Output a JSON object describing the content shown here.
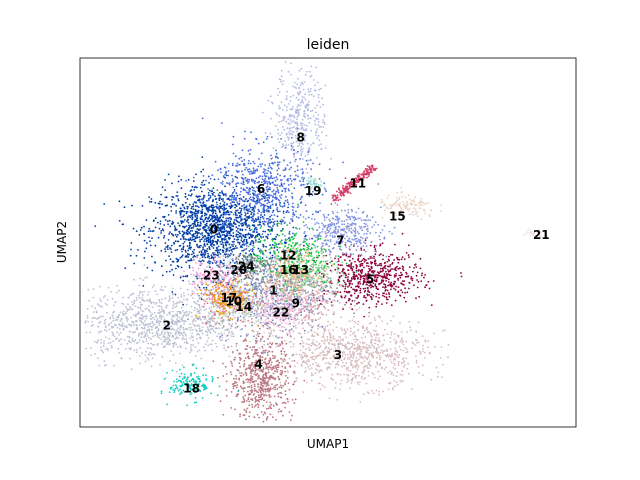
{
  "chart_data": {
    "type": "scatter",
    "title": "leiden",
    "xlabel": "UMAP1",
    "ylabel": "UMAP2",
    "xlim": [
      0,
      100
    ],
    "ylim": [
      0,
      100
    ],
    "grid": false,
    "legend": "on data",
    "ticks_shown": false,
    "clusters": [
      {
        "label": "0",
        "x": 27.5,
        "y": 53.5,
        "sx": 6.5,
        "sy": 6.0,
        "n": 1500,
        "color": "#023fa5"
      },
      {
        "label": "1",
        "x": 38.5,
        "y": 36.5,
        "sx": 6.0,
        "sy": 5.5,
        "n": 800,
        "color": "#7d87b9"
      },
      {
        "label": "2",
        "x": 16.5,
        "y": 28.0,
        "sx": 8.5,
        "sy": 4.8,
        "n": 1000,
        "color": "#bec1d4"
      },
      {
        "label": "3",
        "x": 55.0,
        "y": 20.0,
        "sx": 7.5,
        "sy": 4.5,
        "n": 800,
        "color": "#d6bcc0"
      },
      {
        "label": "4",
        "x": 36.5,
        "y": 13.0,
        "sx": 3.2,
        "sy": 5.5,
        "n": 600,
        "color": "#bb7784"
      },
      {
        "label": "5",
        "x": 59.0,
        "y": 40.5,
        "sx": 5.0,
        "sy": 3.6,
        "n": 600,
        "color": "#8e063b"
      },
      {
        "label": "6",
        "x": 36.5,
        "y": 64.5,
        "sx": 5.0,
        "sy": 6.0,
        "n": 600,
        "color": "#4a6fe3"
      },
      {
        "label": "7",
        "x": 52.5,
        "y": 53.0,
        "sx": 4.0,
        "sy": 3.0,
        "n": 350,
        "color": "#8595e1"
      },
      {
        "label": "8",
        "x": 44.5,
        "y": 84.0,
        "sx": 2.6,
        "sy": 6.5,
        "n": 350,
        "color": "#b5bbe3"
      },
      {
        "label": "9",
        "x": 44.0,
        "y": 34.0,
        "sx": 4.0,
        "sy": 4.0,
        "n": 300,
        "color": "#e6afb9"
      },
      {
        "label": "10",
        "x": 30.5,
        "y": 34.5,
        "sx": 3.0,
        "sy": 3.0,
        "n": 200,
        "color": "#e07b91"
      },
      {
        "label": "11",
        "x": 55.0,
        "y": 66.0,
        "sx": 4.0,
        "sy": 1.2,
        "n": 200,
        "color": "#d33f6a",
        "streak": true
      },
      {
        "label": "12",
        "x": 42.5,
        "y": 46.0,
        "sx": 4.0,
        "sy": 4.0,
        "n": 300,
        "color": "#11c638"
      },
      {
        "label": "13",
        "x": 45.5,
        "y": 42.0,
        "sx": 3.0,
        "sy": 3.0,
        "n": 200,
        "color": "#8dd593"
      },
      {
        "label": "14",
        "x": 32.5,
        "y": 32.5,
        "sx": 3.0,
        "sy": 3.0,
        "n": 200,
        "color": "#c6dec7"
      },
      {
        "label": "15",
        "x": 66.0,
        "y": 59.5,
        "sx": 3.0,
        "sy": 1.6,
        "n": 120,
        "color": "#ead3c6"
      },
      {
        "label": "16",
        "x": 42.0,
        "y": 42.0,
        "sx": 3.0,
        "sy": 3.0,
        "n": 200,
        "color": "#f0b98d"
      },
      {
        "label": "17",
        "x": 29.5,
        "y": 35.0,
        "sx": 2.5,
        "sy": 2.5,
        "n": 150,
        "color": "#ef9708"
      },
      {
        "label": "18",
        "x": 22.5,
        "y": 11.5,
        "sx": 2.2,
        "sy": 2.0,
        "n": 150,
        "color": "#0fcfc0"
      },
      {
        "label": "19",
        "x": 47.0,
        "y": 66.0,
        "sx": 1.0,
        "sy": 1.0,
        "n": 40,
        "color": "#9cded6"
      },
      {
        "label": "20",
        "x": 32.0,
        "y": 42.5,
        "sx": 3.0,
        "sy": 3.0,
        "n": 150,
        "color": "#d5eae7"
      },
      {
        "label": "21",
        "x": 91.5,
        "y": 52.5,
        "sx": 1.2,
        "sy": 0.6,
        "n": 40,
        "color": "#f3e1eb"
      },
      {
        "label": "22",
        "x": 40.5,
        "y": 31.5,
        "sx": 2.5,
        "sy": 2.5,
        "n": 150,
        "color": "#f6c4e1"
      },
      {
        "label": "23",
        "x": 27.0,
        "y": 41.5,
        "sx": 2.5,
        "sy": 2.5,
        "n": 120,
        "color": "#f79cd4"
      },
      {
        "label": "24",
        "x": 33.5,
        "y": 43.5,
        "sx": 2.0,
        "sy": 2.0,
        "n": 100,
        "color": "#7f7f7f"
      }
    ],
    "label_positions": [
      {
        "label": "0",
        "x": 27.0,
        "y": 53.5
      },
      {
        "label": "1",
        "x": 39.0,
        "y": 37.0
      },
      {
        "label": "2",
        "x": 17.5,
        "y": 27.5
      },
      {
        "label": "3",
        "x": 52.0,
        "y": 19.5
      },
      {
        "label": "4",
        "x": 36.0,
        "y": 17.0
      },
      {
        "label": "5",
        "x": 58.5,
        "y": 40.0
      },
      {
        "label": "6",
        "x": 36.5,
        "y": 64.5
      },
      {
        "label": "7",
        "x": 52.5,
        "y": 50.5
      },
      {
        "label": "8",
        "x": 44.5,
        "y": 78.5
      },
      {
        "label": "9",
        "x": 43.5,
        "y": 33.5
      },
      {
        "label": "10",
        "x": 31.0,
        "y": 34.0
      },
      {
        "label": "11",
        "x": 56.0,
        "y": 66.0
      },
      {
        "label": "12",
        "x": 42.0,
        "y": 46.5
      },
      {
        "label": "13",
        "x": 44.5,
        "y": 42.5
      },
      {
        "label": "14",
        "x": 33.0,
        "y": 32.5
      },
      {
        "label": "15",
        "x": 64.0,
        "y": 57.0
      },
      {
        "label": "16",
        "x": 42.0,
        "y": 42.5
      },
      {
        "label": "17",
        "x": 30.0,
        "y": 35.0
      },
      {
        "label": "18",
        "x": 22.5,
        "y": 10.5
      },
      {
        "label": "19",
        "x": 47.0,
        "y": 64.0
      },
      {
        "label": "20",
        "x": 32.0,
        "y": 42.5
      },
      {
        "label": "21",
        "x": 93.0,
        "y": 52.0
      },
      {
        "label": "22",
        "x": 40.5,
        "y": 31.0
      },
      {
        "label": "23",
        "x": 26.5,
        "y": 41.0
      },
      {
        "label": "24",
        "x": 33.5,
        "y": 43.5
      }
    ]
  }
}
